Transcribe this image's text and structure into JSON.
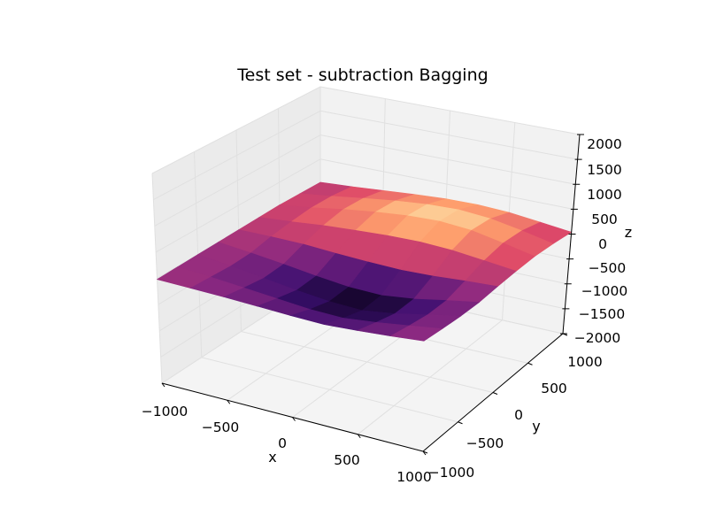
{
  "chart_data": {
    "type": "surface3d",
    "title": "Test set - subtraction Bagging",
    "xlabel": "x",
    "ylabel": "y",
    "zlabel": "z",
    "xlim": [
      -1000,
      1000
    ],
    "ylim": [
      -1000,
      1000
    ],
    "zlim": [
      -2000,
      2000
    ],
    "x_ticks": [
      "−1000",
      "−500",
      "0",
      "500",
      "1000"
    ],
    "y_ticks": [
      "−1000",
      "−500",
      "0",
      "500",
      "1000"
    ],
    "z_ticks": [
      "−2000",
      "−1500",
      "−1000",
      "−500",
      "0",
      "500",
      "1000",
      "1500",
      "2000"
    ],
    "colormap": "magma",
    "surface": {
      "x": [
        -1000,
        -750,
        -500,
        -250,
        0,
        250,
        500,
        750,
        1000
      ],
      "y": [
        -1000,
        -750,
        -500,
        -250,
        0,
        250,
        500,
        750,
        1000
      ],
      "z_range": [
        -400,
        450
      ],
      "description_values": [
        [
          -20,
          -40,
          -60,
          -90,
          -120,
          -140,
          -110,
          -70,
          -20
        ],
        [
          -10,
          -60,
          -120,
          -180,
          -240,
          -260,
          -200,
          -120,
          -40
        ],
        [
          0,
          -80,
          -170,
          -260,
          -330,
          -360,
          -280,
          -160,
          -50
        ],
        [
          10,
          -60,
          -140,
          -230,
          -300,
          -320,
          -250,
          -140,
          -40
        ],
        [
          20,
          20,
          10,
          -30,
          -60,
          -80,
          -60,
          -20,
          10
        ],
        [
          30,
          80,
          140,
          180,
          210,
          220,
          190,
          120,
          50
        ],
        [
          40,
          120,
          220,
          300,
          360,
          380,
          330,
          210,
          80
        ],
        [
          30,
          110,
          200,
          280,
          340,
          360,
          310,
          200,
          70
        ],
        [
          20,
          60,
          110,
          160,
          200,
          210,
          180,
          110,
          40
        ]
      ]
    }
  },
  "colors": {
    "pane_back": "#f2f2f2",
    "pane_side": "#ebebeb",
    "pane_floor": "#f4f4f4",
    "grid": "#e0e0e0"
  }
}
